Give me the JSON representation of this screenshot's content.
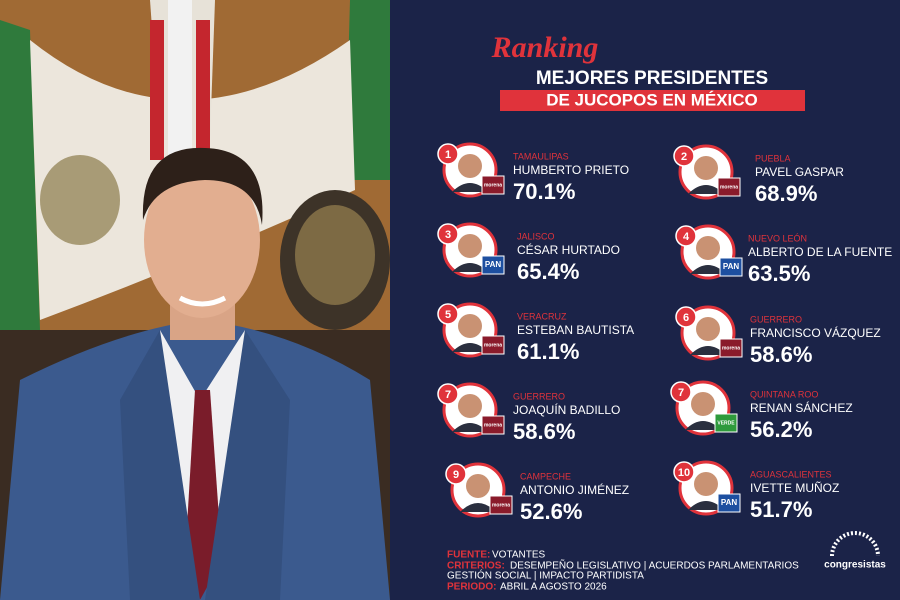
{
  "header": {
    "kicker": "Ranking",
    "title": "MEJORES PRESIDENTES",
    "subtitle": "DE JUCOPOS EN MÉXICO"
  },
  "ranking": [
    {
      "rank": "1",
      "state": "TAMAULIPAS",
      "name": "HUMBERTO PRIETO",
      "score": "70.1%",
      "party": "morena"
    },
    {
      "rank": "2",
      "state": "PUEBLA",
      "name": "PAVEL GASPAR",
      "score": "68.9%",
      "party": "morena"
    },
    {
      "rank": "3",
      "state": "JALISCO",
      "name": "CÉSAR HURTADO",
      "score": "65.4%",
      "party": "PAN"
    },
    {
      "rank": "4",
      "state": "NUEVO LEÓN",
      "name": "ALBERTO DE LA FUENTE",
      "score": "63.5%",
      "party": "PAN"
    },
    {
      "rank": "5",
      "state": "VERACRUZ",
      "name": "ESTEBAN BAUTISTA",
      "score": "61.1%",
      "party": "morena"
    },
    {
      "rank": "6",
      "state": "GUERRERO",
      "name": "FRANCISCO VÁZQUEZ",
      "score": "58.6%",
      "party": "morena"
    },
    {
      "rank": "7",
      "state": "GUERRERO",
      "name": "JOAQUÍN BADILLO",
      "score": "58.6%",
      "party": "morena"
    },
    {
      "rank": "7",
      "state": "QUINTANA ROO",
      "name": "RENAN SÁNCHEZ",
      "score": "56.2%",
      "party": "VERDE"
    },
    {
      "rank": "9",
      "state": "CAMPECHE",
      "name": "ANTONIO JIMÉNEZ",
      "score": "52.6%",
      "party": "morena"
    },
    {
      "rank": "10",
      "state": "AGUASCALIENTES",
      "name": "IVETTE MUÑOZ",
      "score": "51.7%",
      "party": "PAN"
    }
  ],
  "footer": {
    "source_label": "FUENTE:",
    "source": "VOTANTES",
    "criteria_label": "CRITERIOS:",
    "criteria_line1": "DESEMPEÑO LEGISLATIVO | ACUERDOS PARLAMENTARIOS",
    "criteria_line2": "GESTIÓN SOCIAL | IMPACTO PARTIDISTA",
    "period_label": "PERIODO:",
    "period": "ABRIL A AGOSTO 2026"
  },
  "brand": "congresistas"
}
